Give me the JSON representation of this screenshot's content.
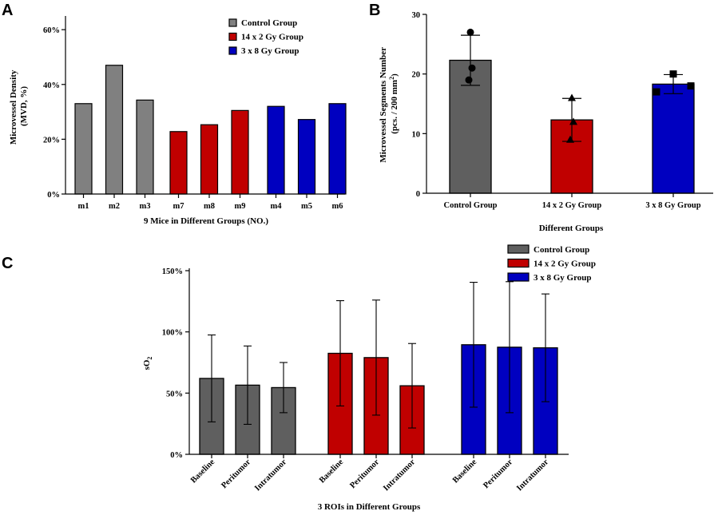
{
  "colors": {
    "control": "#808080",
    "gy14x2": "#c00000",
    "gy3x8": "#0000c0",
    "controlB": "#5f5f5f"
  },
  "chart_data": [
    {
      "panel": "A",
      "type": "bar",
      "ylabel_line1": "Microvessel Density",
      "ylabel_line2": "(MVD, %)",
      "xlabel": "9 Mice in Different Groups (NO.)",
      "ylim": [
        0,
        65
      ],
      "yticks": [
        "0%",
        "20%",
        "40%",
        "60%"
      ],
      "ytick_values": [
        0,
        20,
        40,
        60
      ],
      "legend": [
        "Control Group",
        "14 x 2 Gy Group",
        "3 x 8 Gy Group"
      ],
      "groups": [
        {
          "name": "Control Group",
          "categories": [
            "m1",
            "m2",
            "m3"
          ],
          "values": [
            33,
            47,
            34.3
          ]
        },
        {
          "name": "14 x 2 Gy Group",
          "categories": [
            "m7",
            "m8",
            "m9"
          ],
          "values": [
            22.8,
            25.3,
            30.5
          ]
        },
        {
          "name": "3 x 8 Gy Group",
          "categories": [
            "m4",
            "m5",
            "m6"
          ],
          "values": [
            32,
            27.2,
            33
          ]
        }
      ]
    },
    {
      "panel": "B",
      "type": "bar",
      "ylabel_line1": "Microvessel Segments Number",
      "ylabel_line2": "(pcs. / 200 mm",
      "ylabel_sup": "2",
      "ylabel_close": ")",
      "xlabel": "Different Groups",
      "ylim": [
        0,
        30
      ],
      "yticks": [
        "0",
        "10",
        "20",
        "30"
      ],
      "ytick_values": [
        0,
        10,
        20,
        30
      ],
      "categories": [
        "Control Group",
        "14 x 2 Gy Group",
        "3 x 8 Gy Group"
      ],
      "means": [
        22.3,
        12.3,
        18.3
      ],
      "errors": [
        4.2,
        3.6,
        1.6
      ],
      "points": [
        [
          27,
          21,
          19
        ],
        [
          16,
          12,
          9
        ],
        [
          20,
          18,
          17
        ]
      ],
      "markers": [
        "circle",
        "triangle",
        "square"
      ]
    },
    {
      "panel": "C",
      "type": "bar",
      "ylabel_main": "sO",
      "ylabel_sub": "2",
      "xlabel": "3 ROIs in Different Groups",
      "ylim": [
        0,
        150
      ],
      "yticks": [
        "0%",
        "50%",
        "100%",
        "150%"
      ],
      "ytick_values": [
        0,
        50,
        100,
        150
      ],
      "legend": [
        "Control Group",
        "14 x 2 Gy Group",
        "3 x 8 Gy Group"
      ],
      "categories": [
        "Baseline",
        "Peritumor",
        "Intratumor"
      ],
      "series": [
        {
          "name": "Control Group",
          "values": [
            62,
            56.5,
            54.5
          ],
          "errors": [
            35.5,
            32,
            20.5
          ]
        },
        {
          "name": "14 x 2 Gy Group",
          "values": [
            82.5,
            79,
            56
          ],
          "errors": [
            43,
            47,
            34.5
          ]
        },
        {
          "name": "3 x 8 Gy Group",
          "values": [
            89.5,
            87.5,
            87
          ],
          "errors": [
            51,
            53.5,
            44
          ]
        }
      ]
    }
  ]
}
